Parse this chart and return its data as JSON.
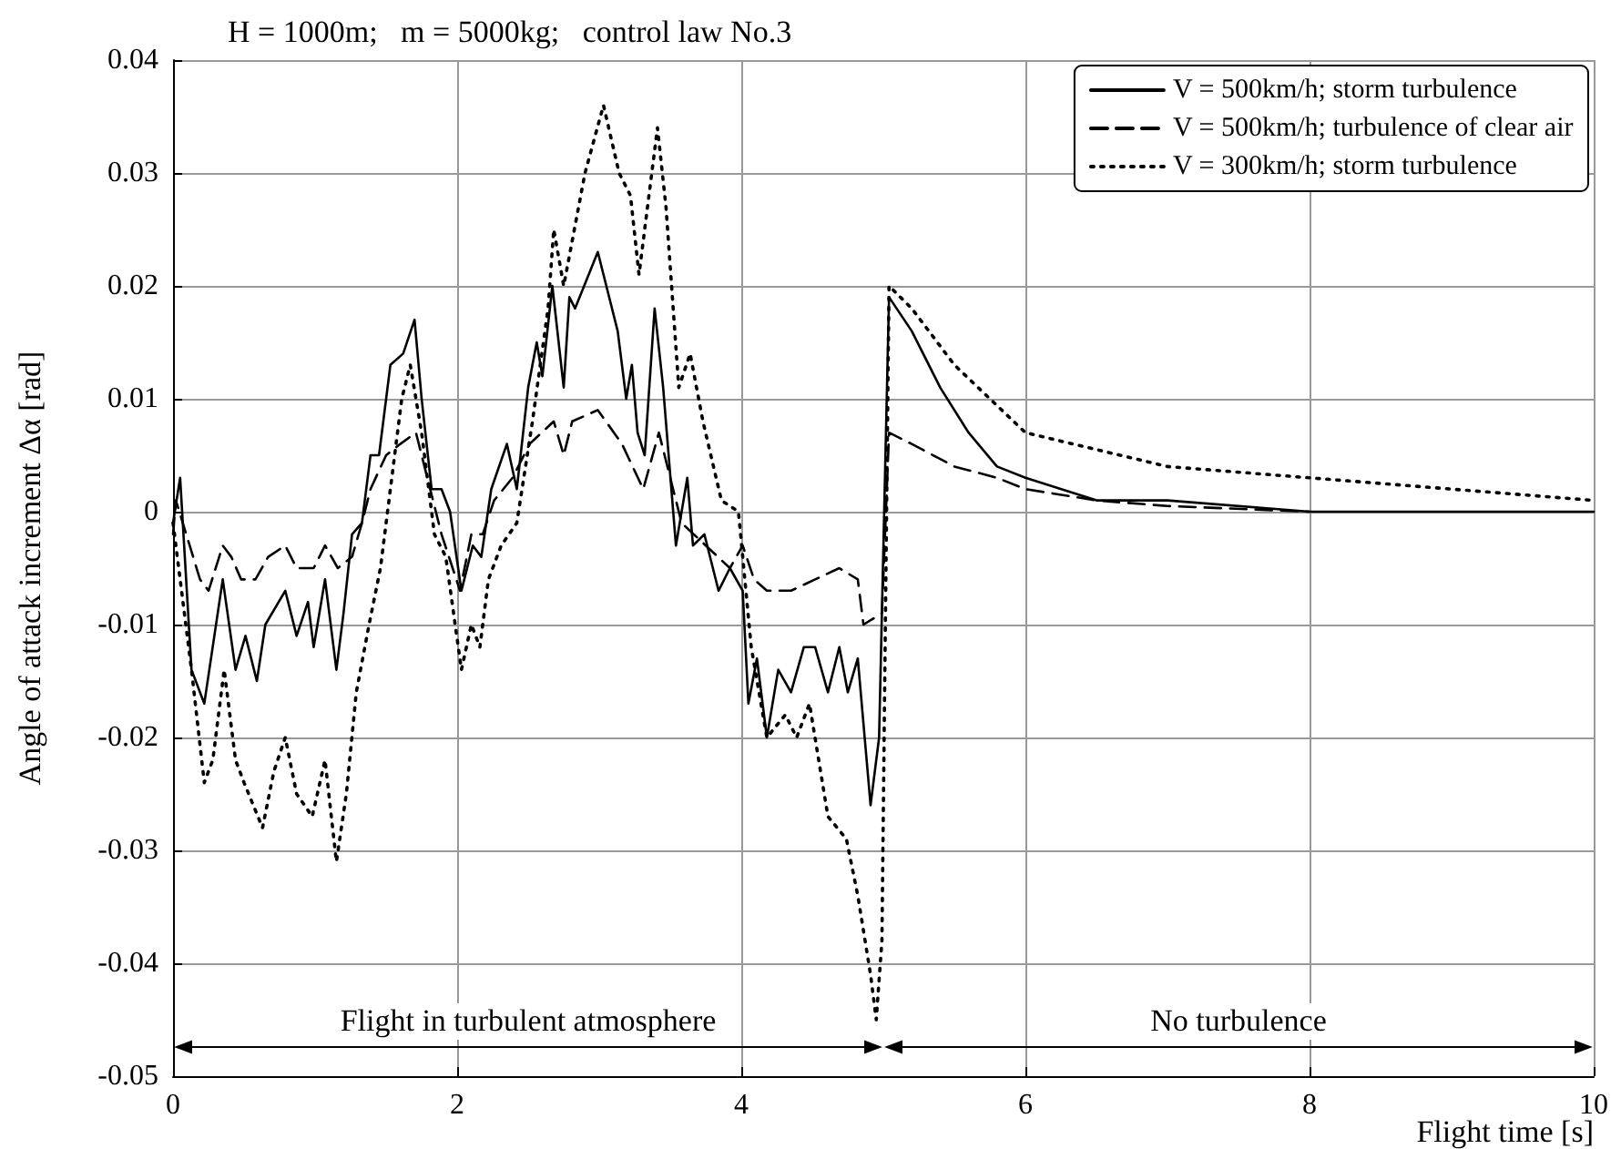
{
  "chart_data": {
    "type": "line",
    "title": "H = 1000m;   m = 5000kg;   control law No.3",
    "xlabel": "Flight time [s]",
    "ylabel": "Angle of attack increment Δα [rad]",
    "xlim": [
      0,
      10
    ],
    "xticks": [
      0,
      2,
      4,
      6,
      8,
      10
    ],
    "ylim": [
      -0.05,
      0.04
    ],
    "yticks": [
      -0.05,
      -0.04,
      -0.03,
      -0.02,
      -0.01,
      0,
      0.01,
      0.02,
      0.03,
      0.04
    ],
    "grid": true,
    "legend": "top right",
    "marker": "none",
    "annotations": [
      "Flight in turbulent atmosphere",
      "No turbulence"
    ],
    "series": [
      {
        "name": "V = 500km/h; storm turbulence",
        "color": "#000000",
        "line_style": "solid",
        "x": [
          0,
          0.05,
          0.13,
          0.22,
          0.35,
          0.44,
          0.51,
          0.59,
          0.65,
          0.79,
          0.87,
          0.95,
          0.99,
          1.07,
          1.15,
          1.2,
          1.26,
          1.33,
          1.39,
          1.45,
          1.53,
          1.62,
          1.7,
          1.75,
          1.82,
          1.89,
          1.95,
          2.03,
          2.11,
          2.17,
          2.24,
          2.35,
          2.42,
          2.5,
          2.56,
          2.6,
          2.67,
          2.75,
          2.79,
          2.83,
          2.99,
          3.13,
          3.19,
          3.23,
          3.27,
          3.32,
          3.39,
          3.45,
          3.54,
          3.62,
          3.66,
          3.74,
          3.84,
          3.92,
          4.01,
          4.05,
          4.11,
          4.18,
          4.26,
          4.35,
          4.44,
          4.52,
          4.61,
          4.69,
          4.75,
          4.82,
          4.91,
          4.97,
          5.04,
          5.2,
          5.4,
          5.6,
          5.8,
          6,
          6.5,
          7,
          8,
          9,
          10
        ],
        "values": [
          -0.001,
          0.003,
          -0.014,
          -0.017,
          -0.006,
          -0.014,
          -0.011,
          -0.015,
          -0.01,
          -0.007,
          -0.011,
          -0.008,
          -0.012,
          -0.006,
          -0.014,
          -0.009,
          -0.002,
          -0.001,
          0.005,
          0.005,
          0.013,
          0.014,
          0.017,
          0.01,
          0.002,
          0.002,
          0.0,
          -0.007,
          -0.003,
          -0.004,
          0.002,
          0.006,
          0.002,
          0.011,
          0.015,
          0.012,
          0.02,
          0.011,
          0.019,
          0.018,
          0.023,
          0.016,
          0.01,
          0.013,
          0.007,
          0.005,
          0.018,
          0.011,
          -0.003,
          0.003,
          -0.003,
          -0.002,
          -0.007,
          -0.005,
          -0.007,
          -0.017,
          -0.013,
          -0.02,
          -0.014,
          -0.016,
          -0.012,
          -0.012,
          -0.016,
          -0.012,
          -0.016,
          -0.013,
          -0.026,
          -0.02,
          0.019,
          0.016,
          0.011,
          0.007,
          0.004,
          0.003,
          0.001,
          0.001,
          0,
          0,
          0
        ]
      },
      {
        "name": "V = 500km/h; turbulence of clear air",
        "color": "#000000",
        "line_style": "dashed",
        "x": [
          0,
          0.02,
          0.19,
          0.25,
          0.35,
          0.41,
          0.48,
          0.58,
          0.67,
          0.79,
          0.87,
          0.99,
          1.07,
          1.16,
          1.26,
          1.33,
          1.39,
          1.5,
          1.6,
          1.71,
          1.79,
          1.89,
          2.02,
          2.1,
          2.18,
          2.26,
          2.39,
          2.51,
          2.68,
          2.75,
          2.81,
          2.99,
          3.16,
          3.31,
          3.42,
          3.5,
          3.58,
          3.75,
          3.92,
          4.01,
          4.09,
          4.18,
          4.35,
          4.52,
          4.69,
          4.82,
          4.86,
          4.99,
          5.04,
          5.2,
          5.5,
          5.8,
          6,
          6.5,
          7,
          8
        ],
        "values": [
          -0.002,
          0.001,
          -0.006,
          -0.007,
          -0.003,
          -0.004,
          -0.006,
          -0.006,
          -0.004,
          -0.003,
          -0.005,
          -0.005,
          -0.003,
          -0.005,
          -0.004,
          -0.001,
          0.002,
          0.005,
          0.006,
          0.007,
          0.003,
          -0.002,
          -0.007,
          -0.002,
          -0.002,
          0.001,
          0.003,
          0.006,
          0.008,
          0.005,
          0.008,
          0.009,
          0.006,
          0.002,
          0.007,
          0.003,
          -0.001,
          -0.003,
          -0.005,
          -0.003,
          -0.006,
          -0.007,
          -0.007,
          -0.006,
          -0.005,
          -0.006,
          -0.01,
          -0.009,
          0.007,
          0.006,
          0.004,
          0.003,
          0.002,
          0.001,
          0.0005,
          0
        ]
      },
      {
        "name": "V = 300km/h; storm turbulence",
        "color": "#000000",
        "line_style": "dotted",
        "x": [
          0,
          0.13,
          0.22,
          0.28,
          0.36,
          0.44,
          0.5,
          0.63,
          0.71,
          0.79,
          0.87,
          0.98,
          1.07,
          1.15,
          1.22,
          1.29,
          1.38,
          1.46,
          1.53,
          1.61,
          1.67,
          1.75,
          1.84,
          1.92,
          2.03,
          2.1,
          2.16,
          2.22,
          2.31,
          2.42,
          2.53,
          2.64,
          2.68,
          2.75,
          2.9,
          3.03,
          3.14,
          3.22,
          3.28,
          3.41,
          3.47,
          3.56,
          3.64,
          3.73,
          3.86,
          3.98,
          4.07,
          4.18,
          4.31,
          4.39,
          4.48,
          4.61,
          4.74,
          4.82,
          4.91,
          4.95,
          4.99,
          5.04,
          5.2,
          5.5,
          6,
          7,
          8,
          9,
          10
        ],
        "values": [
          -0.001,
          -0.014,
          -0.024,
          -0.022,
          -0.014,
          -0.022,
          -0.024,
          -0.028,
          -0.023,
          -0.02,
          -0.025,
          -0.027,
          -0.022,
          -0.031,
          -0.025,
          -0.016,
          -0.01,
          -0.005,
          0.002,
          0.01,
          0.013,
          0.007,
          -0.002,
          -0.004,
          -0.014,
          -0.01,
          -0.012,
          -0.006,
          -0.003,
          -0.001,
          0.008,
          0.018,
          0.025,
          0.02,
          0.03,
          0.036,
          0.03,
          0.028,
          0.021,
          0.034,
          0.027,
          0.011,
          0.014,
          0.008,
          0.001,
          0.0,
          -0.012,
          -0.02,
          -0.018,
          -0.02,
          -0.017,
          -0.027,
          -0.029,
          -0.034,
          -0.041,
          -0.045,
          -0.038,
          0.02,
          0.018,
          0.013,
          0.007,
          0.004,
          0.003,
          0.002,
          0.001
        ]
      }
    ]
  }
}
